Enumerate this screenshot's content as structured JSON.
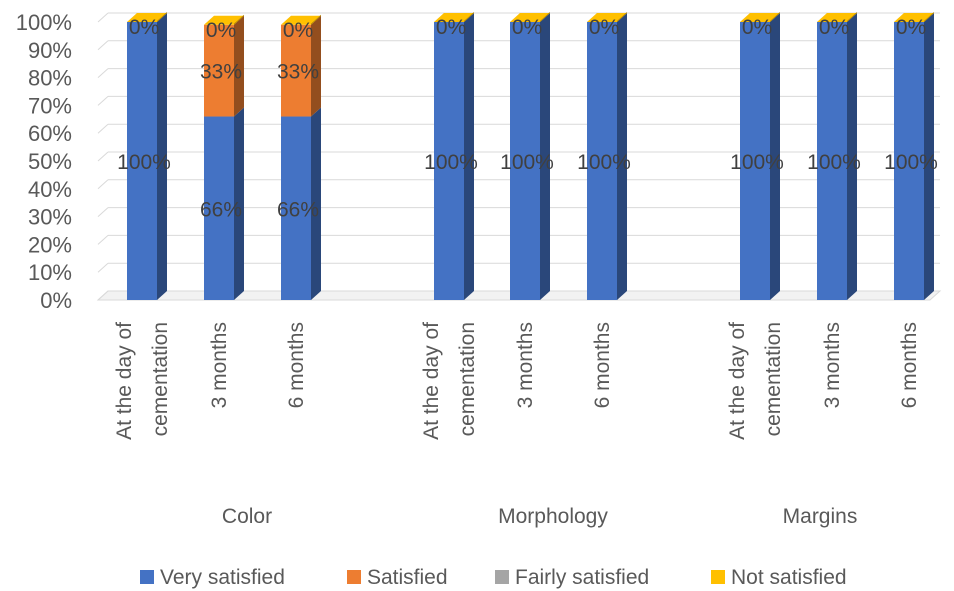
{
  "chart_data": {
    "type": "bar",
    "stacked": true,
    "percent_stacked": true,
    "three_d": true,
    "title": "",
    "xlabel": "",
    "ylabel": "",
    "ylim": [
      0,
      100
    ],
    "y_ticks": [
      "0%",
      "10%",
      "20%",
      "30%",
      "40%",
      "50%",
      "60%",
      "70%",
      "80%",
      "90%",
      "100%"
    ],
    "grid": true,
    "legend_position": "bottom",
    "groups": [
      {
        "name": "Color",
        "categories": [
          "At the day of cementation",
          "3 months",
          "6 months"
        ],
        "category_lines": [
          [
            "At the day of",
            "cementation"
          ],
          [
            "3 months"
          ],
          [
            "6 months"
          ]
        ],
        "series": [
          {
            "name": "Very satisfied",
            "values": [
              100,
              66,
              66
            ],
            "labels": [
              "100%",
              "66%",
              "66%"
            ]
          },
          {
            "name": "Satisfied",
            "values": [
              0,
              33,
              33
            ],
            "labels": [
              "",
              "33%",
              "33%"
            ]
          },
          {
            "name": "Fairly satisfied",
            "values": [
              0,
              0,
              0
            ],
            "labels": [
              "",
              "",
              ""
            ]
          },
          {
            "name": "Not satisfied",
            "values": [
              0,
              0,
              0
            ],
            "labels": [
              "0%",
              "0%",
              "0%"
            ]
          }
        ]
      },
      {
        "name": "Morphology",
        "categories": [
          "At the day of cementation",
          "3 months",
          "6 months"
        ],
        "category_lines": [
          [
            "At the day of",
            "cementation"
          ],
          [
            "3 months"
          ],
          [
            "6 months"
          ]
        ],
        "series": [
          {
            "name": "Very satisfied",
            "values": [
              100,
              100,
              100
            ],
            "labels": [
              "100%",
              "100%",
              "100%"
            ]
          },
          {
            "name": "Satisfied",
            "values": [
              0,
              0,
              0
            ],
            "labels": [
              "",
              "",
              ""
            ]
          },
          {
            "name": "Fairly satisfied",
            "values": [
              0,
              0,
              0
            ],
            "labels": [
              "",
              "",
              ""
            ]
          },
          {
            "name": "Not satisfied",
            "values": [
              0,
              0,
              0
            ],
            "labels": [
              "0%",
              "0%",
              "0%"
            ]
          }
        ]
      },
      {
        "name": "Margins",
        "categories": [
          "At the day of cementation",
          "3 months",
          "6 months"
        ],
        "category_lines": [
          [
            "At the day of",
            "cementation"
          ],
          [
            "3 months"
          ],
          [
            "6 months"
          ]
        ],
        "series": [
          {
            "name": "Very satisfied",
            "values": [
              100,
              100,
              100
            ],
            "labels": [
              "100%",
              "100%",
              "100%"
            ]
          },
          {
            "name": "Satisfied",
            "values": [
              0,
              0,
              0
            ],
            "labels": [
              "",
              "",
              ""
            ]
          },
          {
            "name": "Fairly satisfied",
            "values": [
              0,
              0,
              0
            ],
            "labels": [
              "",
              "",
              ""
            ]
          },
          {
            "name": "Not satisfied",
            "values": [
              0,
              0,
              0
            ],
            "labels": [
              "0%",
              "0%",
              "0%"
            ]
          }
        ]
      }
    ],
    "legend": [
      {
        "name": "Very satisfied",
        "color": "#4472C4"
      },
      {
        "name": "Satisfied",
        "color": "#ED7D31"
      },
      {
        "name": "Fairly satisfied",
        "color": "#A5A5A5"
      },
      {
        "name": "Not satisfied",
        "color": "#FFC000"
      }
    ]
  }
}
